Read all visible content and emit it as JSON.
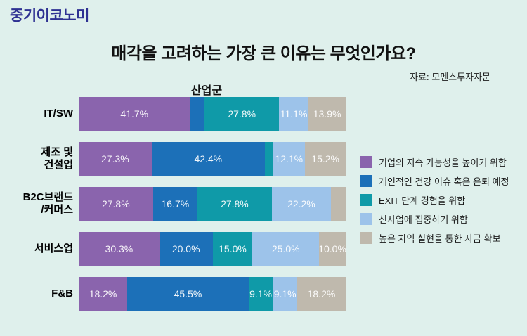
{
  "page": {
    "background_color": "#dff0ec",
    "logo_text": "중기이코노미",
    "logo_color": "#2e3192"
  },
  "chart_data": {
    "type": "bar",
    "variant": "horizontal-stacked-percent",
    "title": "매각을 고려하는 가장 큰 이유는 무엇인가요?",
    "source": "자료: 모멘스투자자문",
    "axis_group_label": "산업군",
    "legend_position": "right",
    "xlim": [
      0,
      100
    ],
    "grid": false,
    "value_label_color": "#ffffff",
    "series": [
      {
        "name": "기업의 지속 가능성을 높이기 위함",
        "color": "#8a64ad"
      },
      {
        "name": "개인적인 건강 이슈 혹은 은퇴 예정",
        "color": "#1c70b8"
      },
      {
        "name": "EXIT 단계 경험을 위함",
        "color": "#0f9aa8"
      },
      {
        "name": "신사업에 집중하기 위함",
        "color": "#9dc3ea"
      },
      {
        "name": "높은 차익 실현을 통한 자금 확보",
        "color": "#bfb9ad"
      }
    ],
    "categories": [
      "IT/SW",
      "제조 및\n건설업",
      "B2C브랜드\n/커머스",
      "서비스업",
      "F&B"
    ],
    "rows": [
      {
        "category": "IT/SW",
        "values": [
          41.7,
          5.5,
          27.8,
          11.1,
          13.9
        ],
        "labels": [
          "41.7%",
          "",
          "27.8%",
          "11.1%",
          "13.9%"
        ]
      },
      {
        "category": "제조 및\n건설업",
        "values": [
          27.3,
          42.4,
          3.0,
          12.1,
          15.2
        ],
        "labels": [
          "27.3%",
          "42.4%",
          "",
          "12.1%",
          "15.2%"
        ]
      },
      {
        "category": "B2C브랜드\n/커머스",
        "values": [
          27.8,
          16.7,
          27.8,
          22.2,
          5.5
        ],
        "labels": [
          "27.8%",
          "16.7%",
          "27.8%",
          "22.2%",
          ""
        ]
      },
      {
        "category": "서비스업",
        "values": [
          30.3,
          20.0,
          15.0,
          25.0,
          10.0
        ],
        "labels": [
          "30.3%",
          "20.0%",
          "15.0%",
          "25.0%",
          "10.0%"
        ]
      },
      {
        "category": "F&B",
        "values": [
          18.2,
          45.5,
          9.1,
          9.1,
          18.2
        ],
        "labels": [
          "18.2%",
          "45.5%",
          "9.1%",
          "9.1%",
          "18.2%"
        ]
      }
    ]
  }
}
